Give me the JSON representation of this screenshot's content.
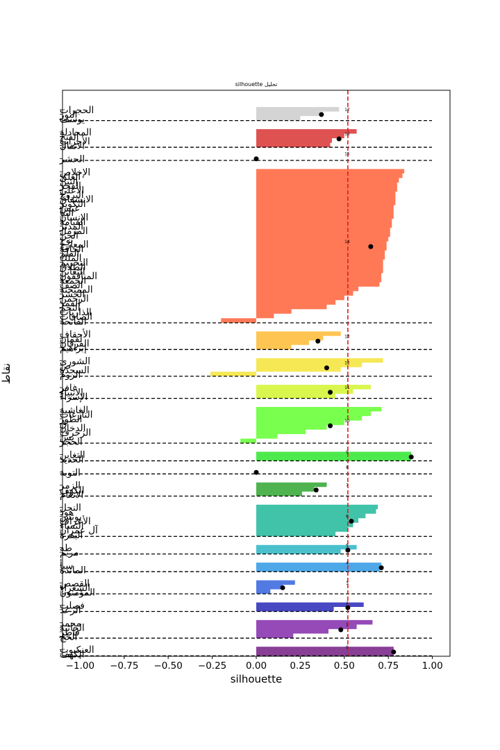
{
  "chart_data": {
    "type": "area",
    "title": "silhouette تحليل",
    "xlabel": "silhouette",
    "ylabel": "نقاط",
    "xlim": [
      -1.1,
      1.1
    ],
    "xticks": [
      -1.0,
      -0.75,
      -0.5,
      -0.25,
      0.0,
      0.25,
      0.5,
      0.75,
      1.0
    ],
    "xtick_labels": [
      "−1.00",
      "−0.75",
      "−0.50",
      "−0.25",
      "0.00",
      "0.25",
      "0.50",
      "0.75",
      "1.00"
    ],
    "average_silhouette": 0.52,
    "grid": false,
    "legend": "none",
    "clusters": [
      {
        "id": 0,
        "color": "#7b2a8a",
        "labels": [
          "العنكبوت",
          "الكهف"
        ],
        "silhouette": [
          0.78,
          0.78
        ],
        "centroid": 0.78
      },
      {
        "id": 1,
        "color": "#8a36b0",
        "labels": [
          "محمد",
          "الجاثية",
          "فاطر",
          "الحج"
        ],
        "silhouette": [
          0.66,
          0.57,
          0.41,
          0.21
        ],
        "centroid": 0.48
      },
      {
        "id": 2,
        "color": "#3434bd",
        "labels": [
          "فصلت",
          "الرعد"
        ],
        "silhouette": [
          0.61,
          0.44
        ],
        "centroid": 0.52
      },
      {
        "id": 3,
        "color": "#3f6be0",
        "labels": [
          "القصص",
          "الشعراء",
          "المؤمنون"
        ],
        "silhouette": [
          0.22,
          0.15,
          0.08
        ],
        "centroid": 0.15
      },
      {
        "id": 4,
        "color": "#3b9ee6",
        "labels": [
          "سبأ",
          "المائدة"
        ],
        "silhouette": [
          0.71,
          0.7
        ],
        "centroid": 0.71
      },
      {
        "id": 5,
        "color": "#36b9c8",
        "labels": [
          "طه",
          "مريم"
        ],
        "silhouette": [
          0.57,
          0.48
        ],
        "centroid": 0.52
      },
      {
        "id": 6,
        "color": "#2cbca0",
        "labels": [
          "النحل",
          "هود",
          "يونس",
          "الأعراف",
          "النساء",
          "آل عمران",
          "البقرة"
        ],
        "silhouette": [
          0.69,
          0.68,
          0.62,
          0.58,
          0.55,
          0.52,
          0.45
        ],
        "centroid": 0.54
      },
      {
        "id": 7,
        "color": "#3cab3c",
        "labels": [
          "الزمر",
          "الكهف",
          "الأنعام"
        ],
        "silhouette": [
          0.4,
          0.33,
          0.26
        ],
        "centroid": 0.34
      },
      {
        "id": 8,
        "color": "#16a316",
        "labels": [
          "التوبة"
        ],
        "silhouette": [
          0.0
        ],
        "centroid": 0.0
      },
      {
        "id": 9,
        "color": "#3ae83a",
        "labels": [
          "التغابن",
          "الحديد"
        ],
        "silhouette": [
          0.88,
          0.88
        ],
        "centroid": 0.88
      },
      {
        "id": 10,
        "color": "#6aff3a",
        "labels": [
          "الغاشية",
          "النازعات",
          "الطور",
          "ق",
          "الدخان",
          "الزخرف",
          "يس",
          "الحجر"
        ],
        "silhouette": [
          0.71,
          0.65,
          0.6,
          0.5,
          0.4,
          0.28,
          0.12,
          -0.09
        ],
        "centroid": 0.42
      },
      {
        "id": 11,
        "color": "#d4f53a",
        "labels": [
          "غافر",
          "الأنبياء",
          "الإسراء"
        ],
        "silhouette": [
          0.65,
          0.55,
          0.45
        ],
        "centroid": 0.42
      },
      {
        "id": 12,
        "color": "#f5e642",
        "labels": [
          "الشورى",
          "ص",
          "السجدة",
          "الروم"
        ],
        "silhouette": [
          0.72,
          0.6,
          0.48,
          -0.26
        ],
        "centroid": 0.4
      },
      {
        "id": 13,
        "color": "#ffbf3f",
        "labels": [
          "الأحقاف",
          "لقمان",
          "الفرقان",
          "إبراهيم"
        ],
        "silhouette": [
          0.48,
          0.38,
          0.3,
          0.2
        ],
        "centroid": 0.35
      },
      {
        "id": 14,
        "color": "#ff6a45",
        "labels": [
          "الإخلاص",
          "العلق",
          "التين",
          "الفجر",
          "الأعلى",
          "البروج",
          "الانشقاق",
          "التكوير",
          "عبس",
          "النبأ",
          "الإنسان",
          "القيامة",
          "المدثر",
          "المزمل",
          "الجن",
          "نوح",
          "المعارج",
          "الحاقة",
          "القلم",
          "الملك",
          "التحريم",
          "الطلاق",
          "التغابن",
          "المنافقون",
          "الجمعة",
          "الصف",
          "الممتحنة",
          "الحشر",
          "الرحمن",
          "القمر",
          "النجم",
          "الذاريات",
          "الصافات",
          "الفاتحة"
        ],
        "silhouette": [
          0.84,
          0.83,
          0.81,
          0.8,
          0.8,
          0.79,
          0.79,
          0.79,
          0.78,
          0.78,
          0.78,
          0.77,
          0.77,
          0.76,
          0.76,
          0.75,
          0.74,
          0.74,
          0.73,
          0.73,
          0.72,
          0.72,
          0.72,
          0.71,
          0.71,
          0.7,
          0.58,
          0.55,
          0.5,
          0.45,
          0.4,
          0.2,
          0.1,
          -0.2
        ],
        "centroid": 0.65
      },
      {
        "id": 15,
        "color": "#16a316",
        "labels": [
          "الحشر"
        ],
        "silhouette": [
          0.0
        ],
        "centroid": 0.0
      },
      {
        "id": 16,
        "color": "#dc3f3f",
        "labels": [
          "المجادلة",
          "الفتح",
          "الأحزاب",
          "الأنفال"
        ],
        "silhouette": [
          0.57,
          0.5,
          0.43,
          0.42
        ],
        "centroid": 0.47
      },
      {
        "id": 17,
        "color": "#cfcfcf",
        "labels": [
          "الحجرات",
          "النور",
          "يوسف"
        ],
        "silhouette": [
          0.47,
          0.36,
          0.25
        ],
        "centroid": 0.37
      }
    ]
  }
}
